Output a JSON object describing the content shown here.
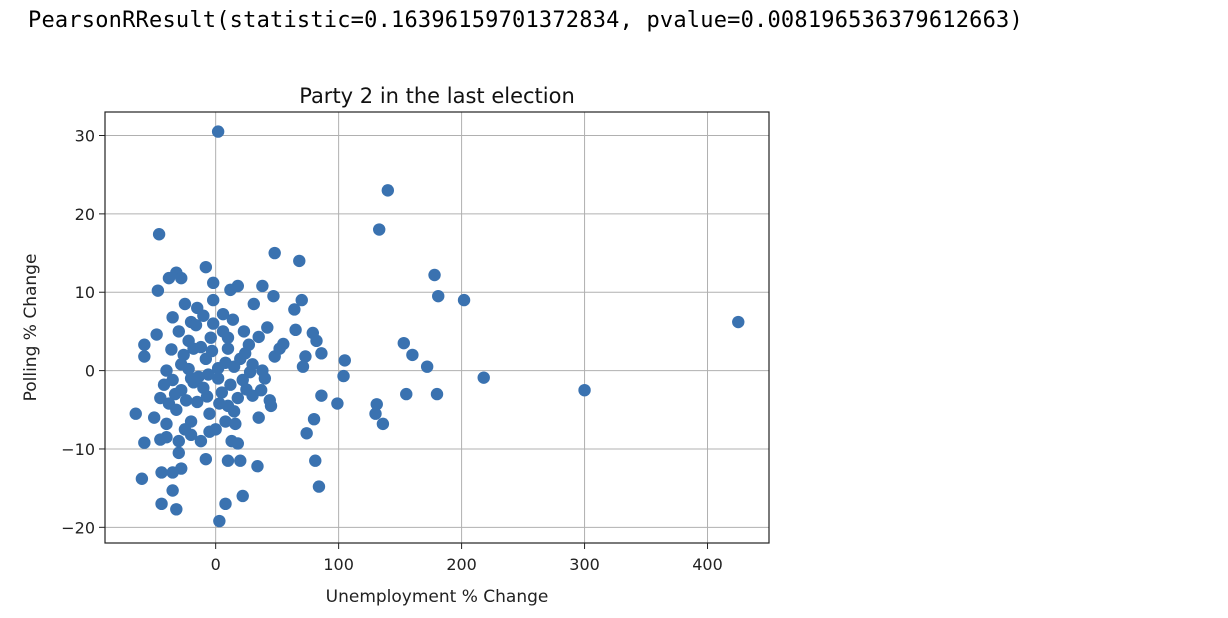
{
  "output": {
    "text": "PearsonRResult(statistic=0.16396159701372834, pvalue=0.008196536379612663)"
  },
  "chart_data": {
    "type": "scatter",
    "title": "Party 2 in the last election",
    "xlabel": "Unemployment % Change",
    "ylabel": "Polling % Change",
    "xlim": [
      -90,
      450
    ],
    "ylim": [
      -22,
      33
    ],
    "xticks": [
      0,
      100,
      200,
      300,
      400
    ],
    "yticks": [
      -20,
      -10,
      0,
      10,
      20,
      30
    ],
    "ytick_labels": [
      "−20",
      "−10",
      "0",
      "10",
      "20",
      "30"
    ],
    "grid": true,
    "marker_color": "#3a72b0",
    "points": [
      [
        2,
        30.5
      ],
      [
        140,
        23
      ],
      [
        -46,
        17.4
      ],
      [
        133,
        18
      ],
      [
        48,
        15
      ],
      [
        68,
        14
      ],
      [
        -8,
        13.2
      ],
      [
        -32,
        12.5
      ],
      [
        -38,
        11.8
      ],
      [
        -28,
        11.8
      ],
      [
        178,
        12.2
      ],
      [
        181,
        9.5
      ],
      [
        202,
        9
      ],
      [
        -47,
        10.2
      ],
      [
        -2,
        11.2
      ],
      [
        18,
        10.8
      ],
      [
        12,
        10.3
      ],
      [
        38,
        10.8
      ],
      [
        47,
        9.5
      ],
      [
        70,
        9
      ],
      [
        31,
        8.5
      ],
      [
        64,
        7.8
      ],
      [
        -25,
        8.5
      ],
      [
        -15,
        8
      ],
      [
        6,
        7.2
      ],
      [
        -35,
        6.8
      ],
      [
        -20,
        6.2
      ],
      [
        -48,
        4.6
      ],
      [
        65,
        5.2
      ],
      [
        23,
        5
      ],
      [
        42,
        5.5
      ],
      [
        79,
        4.8
      ],
      [
        82,
        3.8
      ],
      [
        153,
        3.5
      ],
      [
        -58,
        3.3
      ],
      [
        -58,
        1.8
      ],
      [
        10,
        4.2
      ],
      [
        35,
        4.3
      ],
      [
        55,
        3.4
      ],
      [
        160,
        2
      ],
      [
        105,
        1.3
      ],
      [
        86,
        2.2
      ],
      [
        73,
        1.8
      ],
      [
        71,
        0.5
      ],
      [
        172,
        0.5
      ],
      [
        104,
        -0.7
      ],
      [
        218,
        -0.9
      ],
      [
        -30,
        5
      ],
      [
        -12,
        3
      ],
      [
        -3,
        2.5
      ],
      [
        -26,
        2
      ],
      [
        20,
        1.5
      ],
      [
        8,
        1
      ],
      [
        15,
        0.5
      ],
      [
        -40,
        0
      ],
      [
        -22,
        0.2
      ],
      [
        -6,
        -0.5
      ],
      [
        28,
        -0.2
      ],
      [
        -35,
        -1.2
      ],
      [
        -18,
        -1.5
      ],
      [
        2,
        -1
      ],
      [
        12,
        -1.8
      ],
      [
        40,
        -1
      ],
      [
        -28,
        -2.5
      ],
      [
        -10,
        -2.2
      ],
      [
        5,
        -2.8
      ],
      [
        25,
        -2.4
      ],
      [
        -45,
        -3.5
      ],
      [
        -38,
        -4.2
      ],
      [
        -15,
        -4
      ],
      [
        18,
        -3.5
      ],
      [
        44,
        -3.8
      ],
      [
        -32,
        -5
      ],
      [
        -5,
        -5.5
      ],
      [
        15,
        -5.2
      ],
      [
        35,
        -6
      ],
      [
        155,
        -3
      ],
      [
        180,
        -3
      ],
      [
        300,
        -2.5
      ],
      [
        425,
        6.2
      ],
      [
        86,
        -3.2
      ],
      [
        99,
        -4.2
      ],
      [
        131,
        -4.3
      ],
      [
        130,
        -5.5
      ],
      [
        136,
        -6.8
      ],
      [
        80,
        -6.2
      ],
      [
        74,
        -8
      ],
      [
        -65,
        -5.5
      ],
      [
        -40,
        -6.8
      ],
      [
        -50,
        -6
      ],
      [
        -20,
        -6.5
      ],
      [
        8,
        -6.5
      ],
      [
        -30,
        -9
      ],
      [
        -12,
        -9
      ],
      [
        -45,
        -8.8
      ],
      [
        -58,
        -9.2
      ],
      [
        -25,
        -7.5
      ],
      [
        -40,
        -8.5
      ],
      [
        -20,
        -8.2
      ],
      [
        -5,
        -7.8
      ],
      [
        13,
        -9
      ],
      [
        18,
        -9.3
      ],
      [
        -30,
        -10.5
      ],
      [
        -8,
        -11.3
      ],
      [
        10,
        -11.5
      ],
      [
        20,
        -11.5
      ],
      [
        34,
        -12.2
      ],
      [
        -28,
        -12.5
      ],
      [
        -35,
        -13
      ],
      [
        -44,
        -13
      ],
      [
        81,
        -11.5
      ],
      [
        -60,
        -13.8
      ],
      [
        84,
        -14.8
      ],
      [
        -35,
        -15.3
      ],
      [
        22,
        -16
      ],
      [
        -44,
        -17
      ],
      [
        8,
        -17
      ],
      [
        -32,
        -17.7
      ],
      [
        3,
        -19.2
      ],
      [
        -22,
        3.8
      ],
      [
        -2,
        6
      ],
      [
        27,
        3.3
      ],
      [
        48,
        1.8
      ],
      [
        3,
        -4.2
      ],
      [
        -7,
        -3.3
      ],
      [
        -16,
        5.8
      ],
      [
        30,
        0.8
      ],
      [
        14,
        6.5
      ],
      [
        -2,
        9
      ],
      [
        -33,
        -3
      ],
      [
        -14,
        -0.8
      ],
      [
        10,
        2.8
      ],
      [
        37,
        -2.5
      ],
      [
        -8,
        1.5
      ],
      [
        22,
        -1.2
      ],
      [
        -24,
        -3.8
      ],
      [
        6,
        5
      ],
      [
        -36,
        2.7
      ],
      [
        -10,
        7
      ],
      [
        16,
        -6.8
      ],
      [
        30,
        -3.2
      ],
      [
        2,
        0.3
      ],
      [
        -20,
        -1
      ],
      [
        45,
        -4.5
      ],
      [
        -4,
        4.2
      ],
      [
        24,
        2.2
      ],
      [
        -28,
        0.8
      ],
      [
        -42,
        -1.8
      ],
      [
        0,
        -7.5
      ],
      [
        38,
        0
      ],
      [
        10,
        -4.5
      ],
      [
        -18,
        2.8
      ],
      [
        52,
        2.8
      ]
    ]
  }
}
